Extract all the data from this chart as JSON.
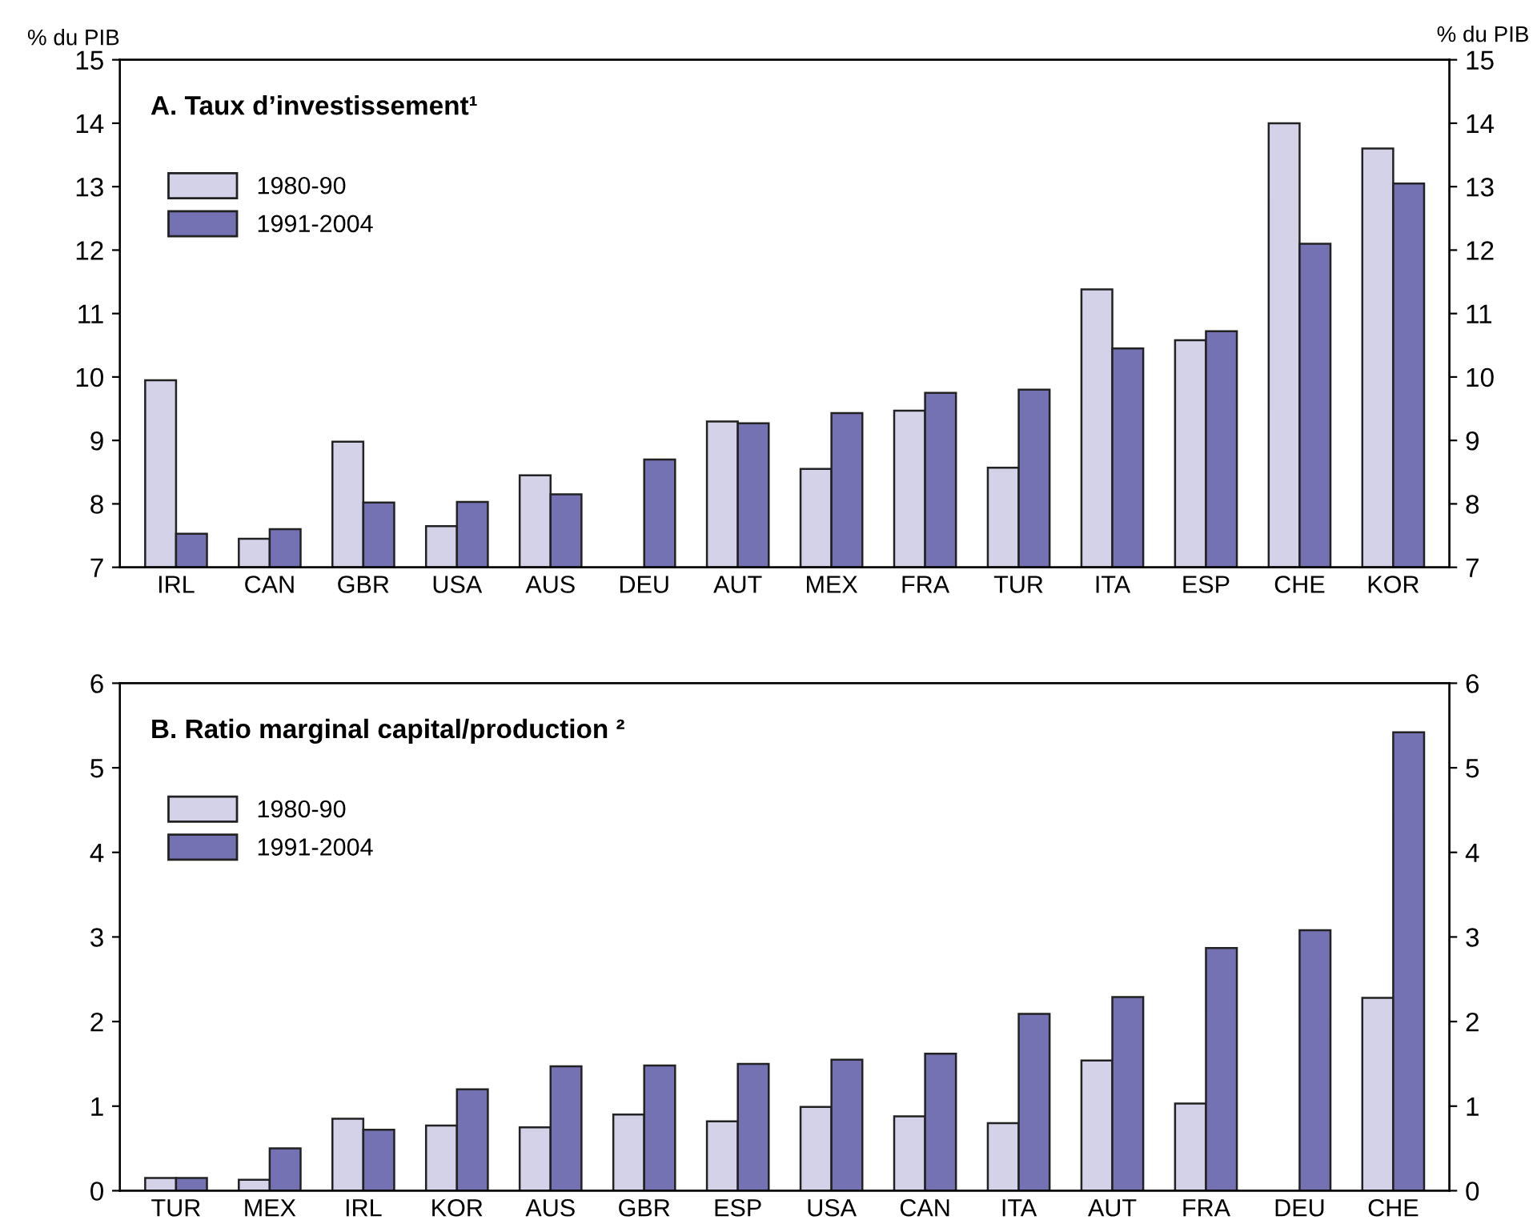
{
  "chart_data": [
    {
      "type": "bar",
      "title": "A. Taux d’investissement¹",
      "ylabel": "% du PIB",
      "y2label": "% du PIB",
      "categories": [
        "IRL",
        "CAN",
        "GBR",
        "USA",
        "AUS",
        "DEU",
        "AUT",
        "MEX",
        "FRA",
        "TUR",
        "ITA",
        "ESP",
        "CHE",
        "KOR"
      ],
      "series": [
        {
          "name": "1980-90",
          "color": "#d3d2e8",
          "values": [
            9.95,
            7.45,
            8.98,
            7.65,
            8.45,
            null,
            9.3,
            8.55,
            9.47,
            8.57,
            11.38,
            10.58,
            14.0,
            13.6
          ]
        },
        {
          "name": "1991-2004",
          "color": "#7572b4",
          "values": [
            7.53,
            7.6,
            8.02,
            8.03,
            8.15,
            8.7,
            9.27,
            9.43,
            9.75,
            9.8,
            10.45,
            10.72,
            12.1,
            13.05
          ]
        }
      ],
      "ylim": [
        7,
        15
      ],
      "yticks": [
        7,
        8,
        9,
        10,
        11,
        12,
        13,
        14,
        15
      ],
      "y2lim": [
        7,
        15
      ],
      "y2ticks": [
        7,
        8,
        9,
        10,
        11,
        12,
        13,
        14,
        15
      ],
      "legend": "top left",
      "grid": false
    },
    {
      "type": "bar",
      "title": "B. Ratio marginal capital/production ²",
      "categories": [
        "TUR",
        "MEX",
        "IRL",
        "KOR",
        "AUS",
        "GBR",
        "ESP",
        "USA",
        "CAN",
        "ITA",
        "AUT",
        "FRA",
        "DEU",
        "CHE"
      ],
      "series": [
        {
          "name": "1980-90",
          "color": "#d3d2e8",
          "values": [
            0.15,
            0.13,
            0.85,
            0.77,
            0.75,
            0.9,
            0.82,
            0.99,
            0.88,
            0.8,
            1.54,
            1.03,
            null,
            2.28
          ]
        },
        {
          "name": "1991-2004",
          "color": "#7572b4",
          "values": [
            0.15,
            0.5,
            0.72,
            1.2,
            1.47,
            1.48,
            1.5,
            1.55,
            1.62,
            2.09,
            2.29,
            2.87,
            3.08,
            5.42
          ]
        }
      ],
      "ylim": [
        0,
        6
      ],
      "yticks": [
        0,
        1,
        2,
        3,
        4,
        5,
        6
      ],
      "y2lim": [
        0,
        6
      ],
      "y2ticks": [
        0,
        1,
        2,
        3,
        4,
        5,
        6
      ],
      "legend": "top left",
      "grid": false
    }
  ]
}
